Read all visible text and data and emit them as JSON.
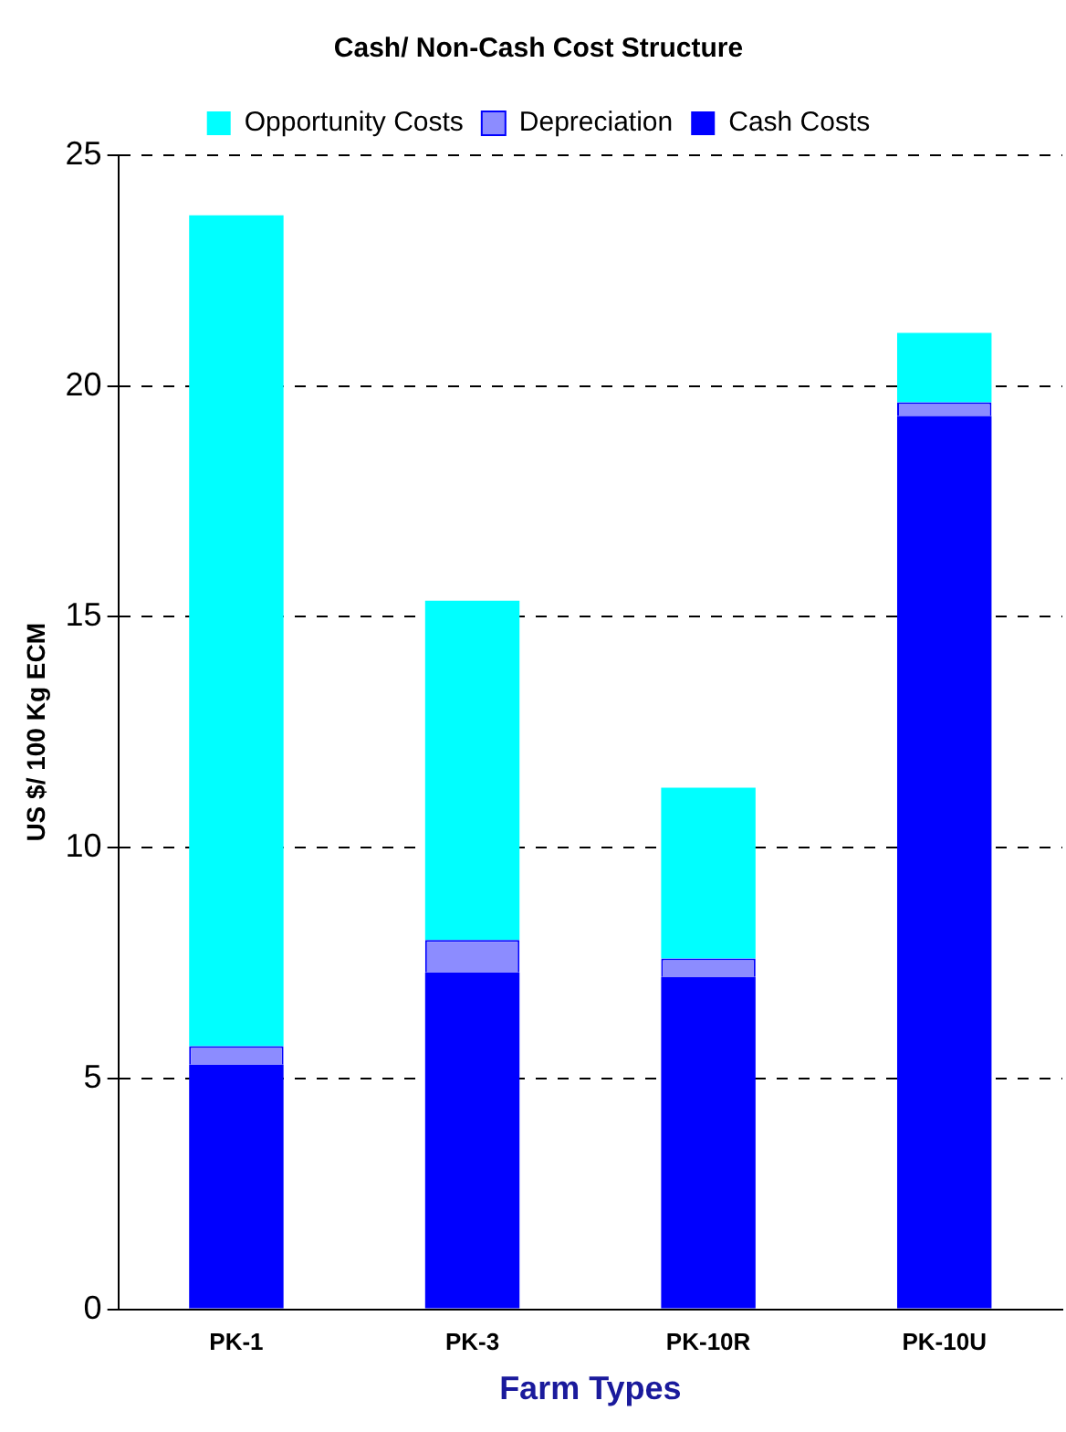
{
  "chart_data": {
    "type": "bar",
    "title": "Cash/ Non-Cash Cost Structure",
    "xlabel": "Farm Types",
    "ylabel": "US $/ 100 Kg ECM",
    "categories": [
      "PK-1",
      "PK-3",
      "PK-10R",
      "PK-10U"
    ],
    "stacked": true,
    "series": [
      {
        "name": "Cash Costs",
        "color": "#0000ff",
        "values": [
          5.3,
          7.3,
          7.2,
          19.35
        ]
      },
      {
        "name": "Depreciation",
        "color": "#8c8cff",
        "values": [
          0.4,
          0.7,
          0.4,
          0.3
        ]
      },
      {
        "name": "Opportunity Costs",
        "color": "#00ffff",
        "values": [
          18.0,
          7.35,
          3.7,
          1.5
        ]
      }
    ],
    "ylim": [
      0,
      25
    ],
    "yticks": [
      0,
      5,
      10,
      15,
      20,
      25
    ],
    "grid": "y",
    "legend": "top"
  }
}
